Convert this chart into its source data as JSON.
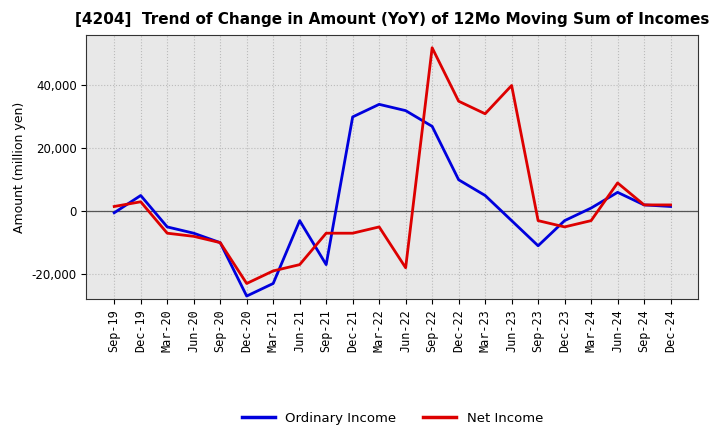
{
  "title": "[4204]  Trend of Change in Amount (YoY) of 12Mo Moving Sum of Incomes",
  "ylabel": "Amount (million yen)",
  "background_color": "#ffffff",
  "plot_bg_color": "#e8e8e8",
  "grid_color": "#bbbbbb",
  "x_labels": [
    "Sep-19",
    "Dec-19",
    "Mar-20",
    "Jun-20",
    "Sep-20",
    "Dec-20",
    "Mar-21",
    "Jun-21",
    "Sep-21",
    "Dec-21",
    "Mar-22",
    "Jun-22",
    "Sep-22",
    "Dec-22",
    "Mar-23",
    "Jun-23",
    "Sep-23",
    "Dec-23",
    "Mar-24",
    "Jun-24",
    "Sep-24",
    "Dec-24"
  ],
  "ordinary_income": [
    -500,
    5000,
    -5000,
    -7000,
    -10000,
    -27000,
    -23000,
    -3000,
    -17000,
    30000,
    34000,
    32000,
    27000,
    10000,
    5000,
    -3000,
    -11000,
    -3000,
    1000,
    6000,
    2000,
    1500
  ],
  "net_income": [
    1500,
    3000,
    -7000,
    -8000,
    -10000,
    -23000,
    -19000,
    -17000,
    -7000,
    -7000,
    -5000,
    -18000,
    52000,
    35000,
    31000,
    40000,
    -3000,
    -5000,
    -3000,
    9000,
    2000,
    2000
  ],
  "ordinary_income_color": "#0000dd",
  "net_income_color": "#dd0000",
  "line_width": 2.0,
  "ylim": [
    -28000,
    56000
  ],
  "yticks": [
    -20000,
    0,
    20000,
    40000
  ],
  "legend_labels": [
    "Ordinary Income",
    "Net Income"
  ],
  "title_fontsize": 11,
  "axis_fontsize": 9,
  "tick_fontsize": 8.5,
  "zero_line_color": "#555555",
  "border_color": "#333333"
}
